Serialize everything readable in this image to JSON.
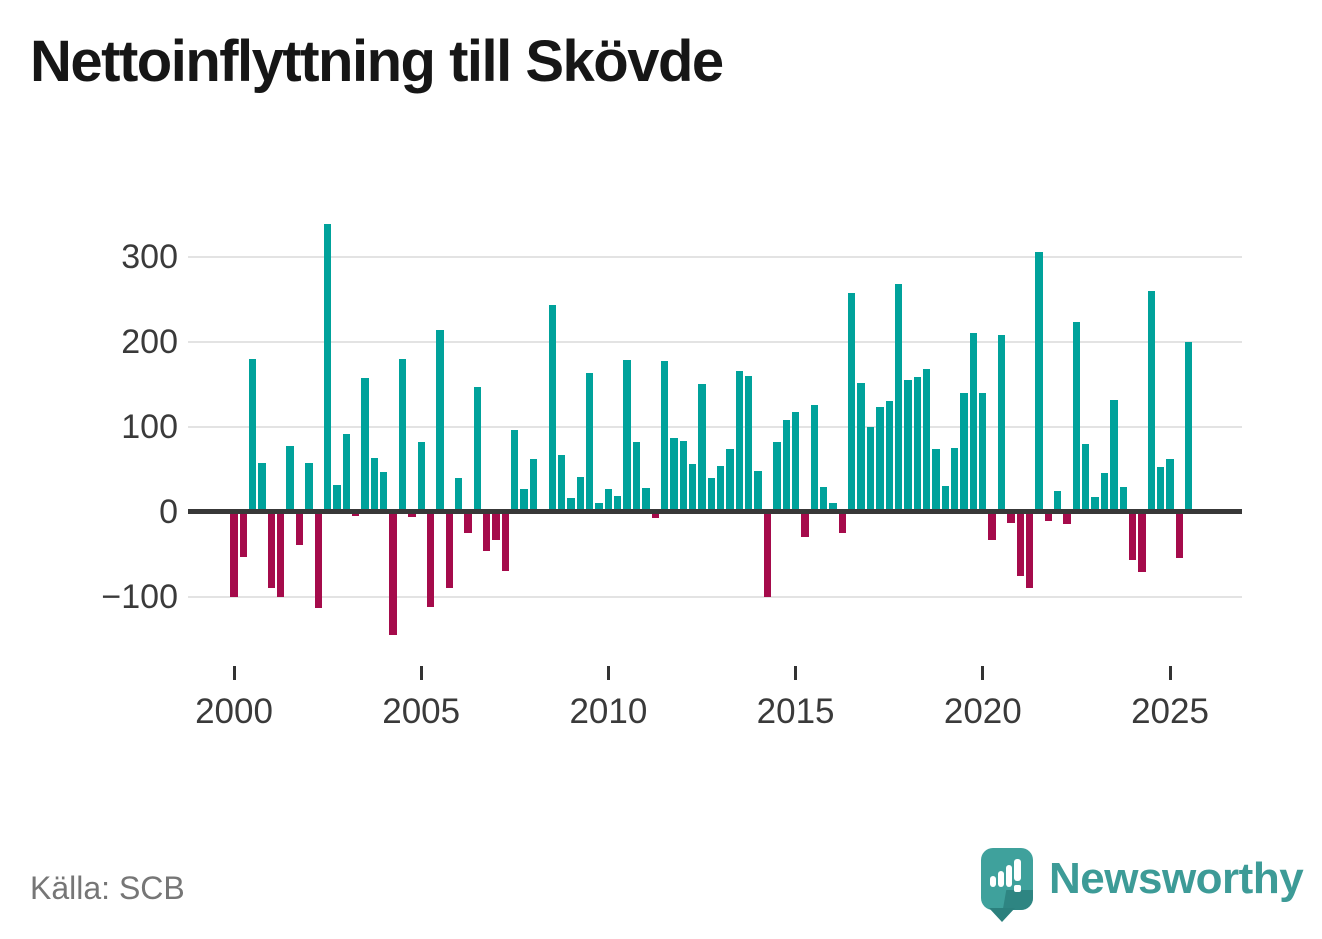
{
  "title": "Nettoinflyttning till Skövde",
  "source": "Källa: SCB",
  "brand": {
    "name": "Newsworthy",
    "icon": "speech-bubble-bar-chart-icon"
  },
  "colors": {
    "positive_bar": "#00a29b",
    "negative_bar": "#a50b4b",
    "zero_line": "#383838",
    "gridline": "#e3e3e3",
    "axis_text": "#3a3a3a",
    "title_text": "#161616",
    "source_text": "#767676",
    "brand_teal": "#3d9b97"
  },
  "chart_data": {
    "type": "bar",
    "title": "Nettoinflyttning till Skövde",
    "frequency": "quarterly",
    "period_start": "2000Q1",
    "period_end": "2025Q3",
    "x_tick_labels": [
      "2000",
      "2005",
      "2010",
      "2015",
      "2020",
      "2025"
    ],
    "x_tick_positions": [
      0,
      20,
      40,
      60,
      80,
      100
    ],
    "y_ticks": [
      300,
      200,
      100,
      0,
      -100
    ],
    "ylim": [
      -175,
      348
    ],
    "grid": true,
    "legend": false,
    "values": [
      -100,
      -53,
      180,
      57,
      -90,
      -100,
      77,
      -39,
      57,
      -114,
      338,
      31,
      91,
      -5,
      157,
      63,
      47,
      -145,
      180,
      -7,
      82,
      -112,
      213,
      -90,
      40,
      -25,
      147,
      -46,
      -33,
      -70,
      96,
      27,
      62,
      0,
      243,
      66,
      16,
      41,
      163,
      10,
      26,
      18,
      178,
      82,
      28,
      -8,
      177,
      87,
      83,
      56,
      150,
      40,
      54,
      73,
      165,
      160,
      48,
      -100,
      82,
      108,
      117,
      -30,
      125,
      29,
      10,
      -25,
      257,
      151,
      100,
      123,
      130,
      268,
      155,
      158,
      168,
      74,
      30,
      75,
      140,
      210,
      140,
      -33,
      208,
      -14,
      -76,
      -90,
      305,
      -11,
      24,
      -15,
      223,
      80,
      17,
      45,
      131,
      29,
      -57,
      -71,
      260,
      52,
      62,
      -55,
      200
    ]
  }
}
